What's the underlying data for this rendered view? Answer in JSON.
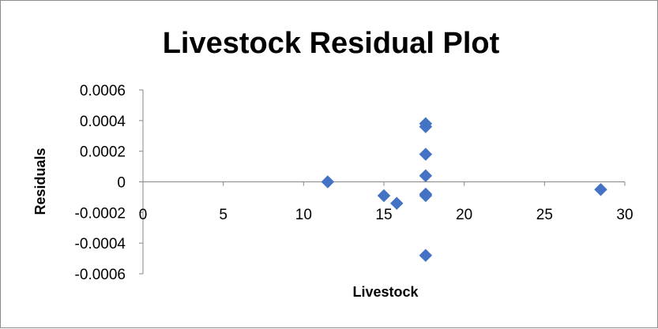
{
  "chart_data": {
    "type": "scatter",
    "title": "Livestock  Residual Plot",
    "xlabel": "Livestock",
    "ylabel": "Residuals",
    "xlim": [
      0,
      30
    ],
    "ylim": [
      -0.0006,
      0.0006
    ],
    "x_ticks": [
      "0",
      "5",
      "10",
      "15",
      "20",
      "25",
      "30"
    ],
    "y_ticks": [
      "0.0006",
      "0.0004",
      "0.0002",
      "0",
      "-0.0002",
      "-0.0004",
      "-0.0006"
    ],
    "grid": false,
    "legend": "none",
    "marker": "diamond",
    "color": "#4472C4",
    "points": [
      {
        "x": 11.5,
        "y": 0.0
      },
      {
        "x": 15.0,
        "y": -9e-05
      },
      {
        "x": 15.8,
        "y": -0.00014
      },
      {
        "x": 17.6,
        "y": 0.00038
      },
      {
        "x": 17.6,
        "y": 0.00036
      },
      {
        "x": 17.6,
        "y": 0.00018
      },
      {
        "x": 17.6,
        "y": 4e-05
      },
      {
        "x": 17.6,
        "y": -8e-05
      },
      {
        "x": 17.6,
        "y": -9e-05
      },
      {
        "x": 17.6,
        "y": -0.00048
      },
      {
        "x": 28.5,
        "y": -5e-05
      }
    ]
  }
}
